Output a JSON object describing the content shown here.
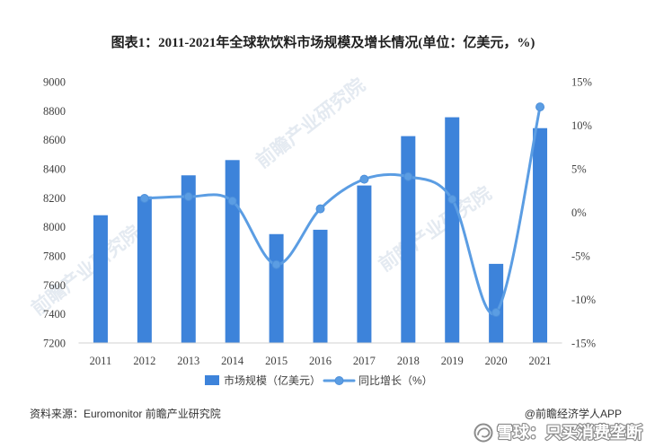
{
  "chart_data": {
    "type": "bar",
    "title": "图表1：2011-2021年全球软饮料市场规模及增长情况(单位：亿美元，%)",
    "xlabel": "",
    "ylabel": "",
    "categories": [
      "2011",
      "2012",
      "2013",
      "2014",
      "2015",
      "2016",
      "2017",
      "2018",
      "2019",
      "2020",
      "2021"
    ],
    "series": [
      {
        "name": "市场规模（亿美元）",
        "type": "bar",
        "axis": "left",
        "color": "#3D83DA",
        "values": [
          8080,
          8210,
          8355,
          8460,
          7950,
          7980,
          8285,
          8625,
          8755,
          7745,
          8680
        ]
      },
      {
        "name": "同比增长（%）",
        "type": "line",
        "axis": "right",
        "smooth": true,
        "markers": true,
        "color": "#5B9DE3",
        "values": [
          null,
          1.6,
          1.8,
          1.3,
          -6.0,
          0.4,
          3.8,
          4.1,
          1.5,
          -11.5,
          12.1
        ]
      }
    ],
    "y_left": {
      "lim": [
        7200,
        9000
      ],
      "ticks": [
        7200,
        7400,
        7600,
        7800,
        8000,
        8200,
        8400,
        8600,
        8800,
        9000
      ],
      "tick_labels": [
        "7200",
        "7400",
        "7600",
        "7800",
        "8000",
        "8200",
        "8400",
        "8600",
        "8800",
        "9000"
      ]
    },
    "y_right": {
      "lim": [
        -15,
        15
      ],
      "ticks": [
        -15,
        -10,
        -5,
        0,
        5,
        10,
        15
      ],
      "tick_labels": [
        "-15%",
        "-10%",
        "-5%",
        "0%",
        "5%",
        "10%",
        "15%"
      ]
    },
    "grid": false,
    "legend": "bottom-center"
  },
  "source": "资料来源：Euromonitor 前瞻产业研究院",
  "credit": "@前瞻经济学人APP",
  "watermark": "前瞻产业研究院",
  "platform_watermark": "雪球：只买消费垄断",
  "colors": {
    "axis": "#D0D0D0",
    "text": "#404040"
  }
}
